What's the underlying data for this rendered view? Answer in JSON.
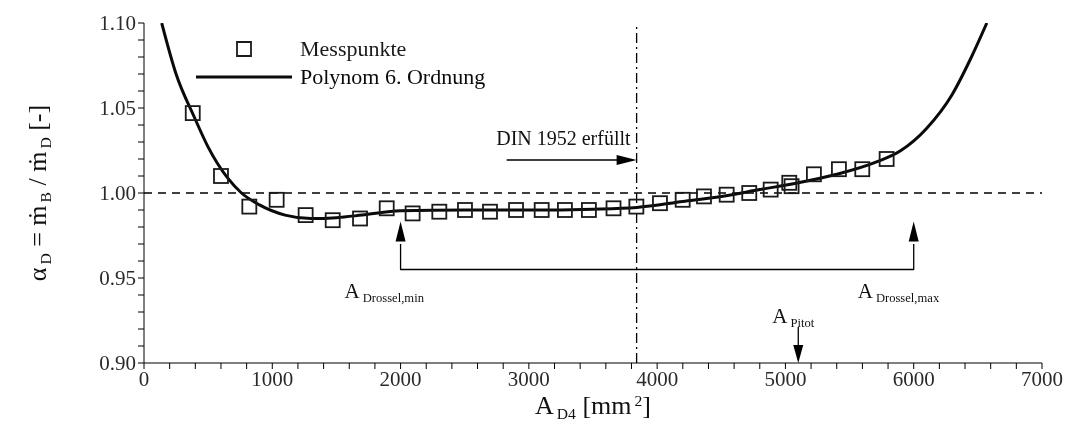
{
  "chart_data": {
    "type": "scatter",
    "xlabel": "A$_{D4}$ [mm$^{2}$]",
    "ylabel": "α$_{D}$ = ṁ$_{B}$ / ṁ$_{D}$ [-]",
    "legend": "top left",
    "grid": false,
    "xlim": [
      0,
      7000
    ],
    "xticks": [
      0,
      {
        "value": 200,
        "label": null
      },
      {
        "value": 400,
        "label": null
      },
      {
        "value": 600,
        "label": null
      },
      {
        "value": 800,
        "label": null
      },
      1000,
      {
        "value": 1200,
        "label": null
      },
      {
        "value": 1400,
        "label": null
      },
      {
        "value": 1600,
        "label": null
      },
      {
        "value": 1800,
        "label": null
      },
      2000,
      {
        "value": 2200,
        "label": null
      },
      {
        "value": 2400,
        "label": null
      },
      {
        "value": 2600,
        "label": null
      },
      {
        "value": 2800,
        "label": null
      },
      3000,
      {
        "value": 3200,
        "label": null
      },
      {
        "value": 3400,
        "label": null
      },
      {
        "value": 3600,
        "label": null
      },
      {
        "value": 3800,
        "label": null
      },
      4000,
      {
        "value": 4200,
        "label": null
      },
      {
        "value": 4400,
        "label": null
      },
      {
        "value": 4600,
        "label": null
      },
      {
        "value": 4800,
        "label": null
      },
      5000,
      {
        "value": 5200,
        "label": null
      },
      {
        "value": 5400,
        "label": null
      },
      {
        "value": 5600,
        "label": null
      },
      {
        "value": 5800,
        "label": null
      },
      6000,
      {
        "value": 6200,
        "label": null
      },
      {
        "value": 6400,
        "label": null
      },
      {
        "value": 6600,
        "label": null
      },
      {
        "value": 6800,
        "label": null
      },
      7000
    ],
    "ylim": [
      0.9,
      1.1
    ],
    "yticks": [
      {
        "value": 0.9,
        "label": "0.90"
      },
      {
        "value": 0.91,
        "label": null
      },
      {
        "value": 0.92,
        "label": null
      },
      {
        "value": 0.93,
        "label": null
      },
      {
        "value": 0.94,
        "label": null
      },
      0.95,
      {
        "value": 0.96,
        "label": null
      },
      {
        "value": 0.97,
        "label": null
      },
      {
        "value": 0.98,
        "label": null
      },
      {
        "value": 0.99,
        "label": null
      },
      {
        "value": 1.0,
        "label": "1.00"
      },
      {
        "value": 1.01,
        "label": null
      },
      {
        "value": 1.02,
        "label": null
      },
      {
        "value": 1.03,
        "label": null
      },
      {
        "value": 1.04,
        "label": null
      },
      1.05,
      {
        "value": 1.06,
        "label": null
      },
      {
        "value": 1.07,
        "label": null
      },
      {
        "value": 1.08,
        "label": null
      },
      {
        "value": 1.09,
        "label": null
      },
      {
        "value": 1.1,
        "label": "1.10"
      }
    ],
    "series": [
      {
        "name": "Messpunkte",
        "marker": "square",
        "color": "#1a1a1a",
        "x": [
          380,
          600,
          821,
          1034,
          1260,
          1471,
          1684,
          1892,
          2094,
          2302,
          2502,
          2697,
          2900,
          3100,
          3281,
          3468,
          3660,
          3838,
          4022,
          4199,
          4365,
          4542,
          4718,
          4885,
          5030,
          5048,
          5222,
          5417,
          5599,
          5789
        ],
        "values": [
          1.047,
          1.01,
          0.992,
          0.996,
          0.987,
          0.984,
          0.985,
          0.991,
          0.988,
          0.989,
          0.99,
          0.989,
          0.99,
          0.99,
          0.99,
          0.99,
          0.991,
          0.992,
          0.994,
          0.996,
          0.998,
          0.999,
          1.0,
          1.002,
          1.006,
          1.004,
          1.011,
          1.014,
          1.014,
          1.02
        ]
      },
      {
        "name": "Polynom 6. Ordnung",
        "type": "line",
        "marker": "none",
        "line_style": "solid",
        "color": "#0a0a0a",
        "x": [
          138,
          250,
          390,
          500,
          650,
          760,
          900,
          1100,
          1300,
          1500,
          1700,
          2000,
          2500,
          3000,
          3500,
          3840,
          4200,
          4500,
          4800,
          5100,
          5400,
          5700,
          5900,
          6100,
          6300,
          6450,
          6570
        ],
        "values": [
          1.1,
          1.07,
          1.045,
          1.027,
          1.009,
          1.0,
          0.993,
          0.987,
          0.985,
          0.9855,
          0.987,
          0.9895,
          0.99,
          0.99,
          0.9905,
          0.9915,
          0.995,
          0.998,
          1.002,
          1.006,
          1.011,
          1.018,
          1.025,
          1.038,
          1.058,
          1.08,
          1.1
        ]
      },
      {
        "type": "line",
        "line_style": "solid",
        "color": "#000000",
        "x": [
          2000,
          2000,
          6000,
          6000
        ],
        "values": [
          0.97,
          0.955,
          0.955,
          0.97
        ]
      }
    ],
    "ref_lines": [
      {
        "axis": "y",
        "value": 1.0,
        "line_style": "dashed",
        "color": "#000000"
      },
      {
        "axis": "x",
        "value": 3840,
        "line_style": "dashdot",
        "color": "#000000",
        "label": "DIN 1952 erfüllt"
      },
      {
        "axis": "x",
        "value": 5100,
        "line_style": "solid",
        "color": "#000000",
        "label": "A$_{Pitot}$"
      }
    ],
    "annotations": [
      {
        "text": "A$_{Drossel,min}$",
        "x": 2000,
        "y": 0.955
      },
      {
        "text": "A$_{Drossel,max}$",
        "x": 6000,
        "y": 0.955
      }
    ]
  }
}
